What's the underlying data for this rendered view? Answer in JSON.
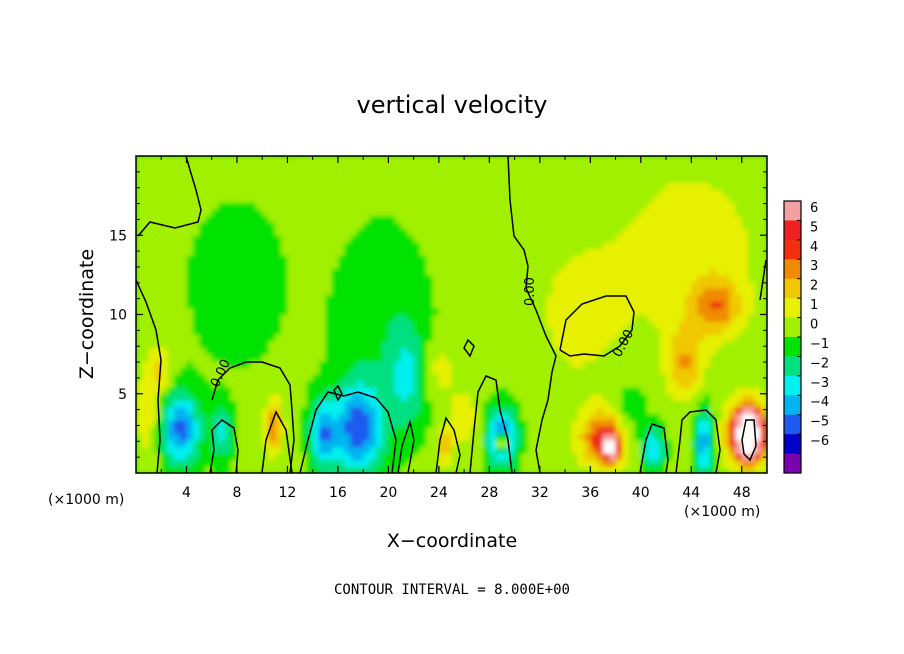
{
  "chart_data": {
    "type": "heatmap",
    "title": "vertical velocity",
    "xlabel": "X−coordinate",
    "ylabel": "Z−coordinate",
    "x_unit_left": "(×1000 m)",
    "x_unit_right": "(×1000 m)",
    "xlim": [
      0,
      50
    ],
    "ylim": [
      0,
      20
    ],
    "x_ticks": [
      4,
      8,
      12,
      16,
      20,
      24,
      28,
      32,
      36,
      40,
      44,
      48
    ],
    "y_ticks": [
      5,
      10,
      15
    ],
    "colorbar": {
      "ticks": [
        6,
        5,
        4,
        3,
        2,
        1,
        0,
        -1,
        -2,
        -3,
        -4,
        -5,
        -6
      ],
      "tick_labels": [
        "6",
        "5",
        "4",
        "3",
        "2",
        "1",
        "0",
        "−1",
        "−2",
        "−3",
        "−4",
        "−5",
        "−6"
      ],
      "colors": [
        "#f5a0a0",
        "#ee2020",
        "#f03010",
        "#f08a00",
        "#f0c800",
        "#e6f000",
        "#a0f000",
        "#00e200",
        "#00e080",
        "#00f0f0",
        "#00b4f0",
        "#1e5af0",
        "#0000c8",
        "#7a00b0"
      ]
    },
    "contour_label": "0.00",
    "contour_interval_text": "CONTOUR INTERVAL = 8.000E+00",
    "features": [
      {
        "x": 3.5,
        "z": 2.8,
        "w": -4.6,
        "sx": 1.1,
        "sz": 1.6
      },
      {
        "x": 1.0,
        "z": 4.0,
        "w": 1.5,
        "sx": 0.8,
        "sz": 2.5
      },
      {
        "x": 6.8,
        "z": 2.5,
        "w": -2.5,
        "sx": 0.6,
        "sz": 1.2
      },
      {
        "x": 10.9,
        "z": 3.0,
        "w": 3.5,
        "sx": 0.5,
        "sz": 1.2
      },
      {
        "x": 14.8,
        "z": 2.5,
        "w": -3.8,
        "sx": 0.7,
        "sz": 1.5
      },
      {
        "x": 17.6,
        "z": 2.8,
        "w": -5.0,
        "sx": 1.4,
        "sz": 2.0
      },
      {
        "x": 21.5,
        "z": 6.0,
        "w": -2.3,
        "sx": 1.0,
        "sz": 2.2
      },
      {
        "x": 19.5,
        "z": 9.5,
        "w": -1.0,
        "sx": 2.5,
        "sz": 4.0
      },
      {
        "x": 24.5,
        "z": 1.8,
        "w": 3.0,
        "sx": 0.4,
        "sz": 0.8
      },
      {
        "x": 26.0,
        "z": 3.5,
        "w": 1.5,
        "sx": 0.8,
        "sz": 1.2
      },
      {
        "x": 29.0,
        "z": 2.3,
        "w": -4.8,
        "sx": 0.8,
        "sz": 1.3
      },
      {
        "x": 29.0,
        "z": 2.0,
        "w": 8.0,
        "sx": 0.25,
        "sz": 0.4
      },
      {
        "x": 37.2,
        "z": 2.2,
        "w": 5.0,
        "sx": 1.3,
        "sz": 1.2
      },
      {
        "x": 37.6,
        "z": 1.6,
        "w": 8.0,
        "sx": 0.35,
        "sz": 0.5
      },
      {
        "x": 41.0,
        "z": 1.5,
        "w": -3.5,
        "sx": 0.6,
        "sz": 0.9
      },
      {
        "x": 45.0,
        "z": 2.0,
        "w": -4.0,
        "sx": 0.5,
        "sz": 1.5
      },
      {
        "x": 48.5,
        "z": 2.5,
        "w": 6.0,
        "sx": 1.2,
        "sz": 1.4
      },
      {
        "x": 48.5,
        "z": 2.5,
        "w": 10.0,
        "sx": 0.55,
        "sz": 0.9
      },
      {
        "x": 46.0,
        "z": 10.5,
        "w": 3.0,
        "sx": 1.3,
        "sz": 1.2
      },
      {
        "x": 43.5,
        "z": 7.0,
        "w": 2.6,
        "sx": 1.0,
        "sz": 1.6
      },
      {
        "x": 44.0,
        "z": 14.0,
        "w": 1.4,
        "sx": 4.0,
        "sz": 4.0
      },
      {
        "x": 35.0,
        "z": 10.0,
        "w": 1.0,
        "sx": 3.0,
        "sz": 4.0
      },
      {
        "x": 2.0,
        "z": 6.5,
        "w": 1.8,
        "sx": 0.6,
        "sz": 1.0
      },
      {
        "x": 39.0,
        "z": 3.5,
        "w": -1.5,
        "sx": 1.0,
        "sz": 1.5
      },
      {
        "x": 24.0,
        "z": 6.5,
        "w": 1.2,
        "sx": 1.2,
        "sz": 1.2
      },
      {
        "x": 8.0,
        "z": 12.0,
        "w": -0.6,
        "sx": 3.0,
        "sz": 4.0
      }
    ]
  }
}
